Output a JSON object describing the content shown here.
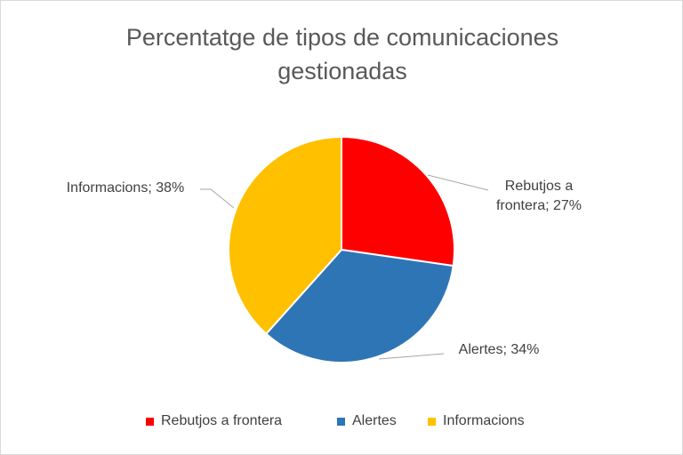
{
  "chart_data": {
    "type": "pie",
    "title": "Percentatge de tipos de comunicaciones gestionadas",
    "categories": [
      "Rebutjos a frontera",
      "Alertes",
      "Informacions"
    ],
    "values": [
      27,
      34,
      38
    ],
    "value_labels": [
      "Rebutjos a frontera; 27%",
      "Alertes; 34%",
      "Informacions; 38%"
    ],
    "colors": [
      "#ff0000",
      "#2e75b6",
      "#ffc000"
    ],
    "legend": "bottom"
  }
}
